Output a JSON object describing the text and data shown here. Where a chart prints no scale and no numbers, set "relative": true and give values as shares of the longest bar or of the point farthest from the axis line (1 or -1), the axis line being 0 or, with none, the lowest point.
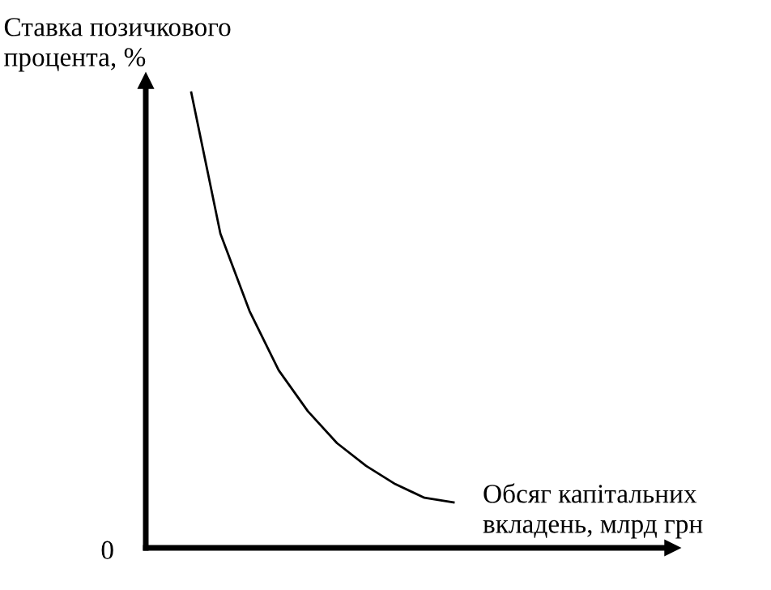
{
  "chart_data": {
    "type": "line",
    "relative": true,
    "ylabel": "Ставка позичкового\nпроцента, %",
    "xlabel": "Обсяг капітальних\nвкладень, млрд грн",
    "annotations": [
      "0"
    ],
    "categories": [
      null,
      null,
      null,
      null,
      null,
      null,
      null,
      null,
      null,
      null
    ],
    "series": [
      {
        "color": "#000000",
        "values": [
          1.0,
          0.69,
          0.52,
          0.39,
          0.3,
          0.23,
          0.18,
          0.14,
          0.11,
          0.1
        ]
      }
    ],
    "legend": false,
    "marker": "none",
    "line_style": "solid"
  }
}
